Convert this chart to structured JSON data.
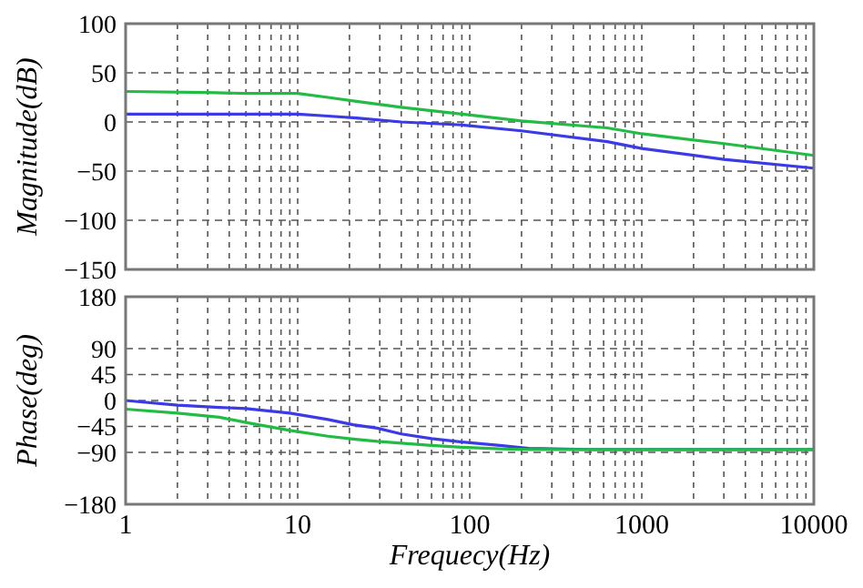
{
  "chart_data": [
    {
      "type": "line",
      "ylabel": "Magnitude(dB)",
      "log": "x",
      "grid": true,
      "tick_labels": "y",
      "line_style": "solid",
      "marker": "none",
      "xlim": [
        1,
        10000
      ],
      "xticks": [
        1,
        {
          "value": 2,
          "label": null
        },
        {
          "value": 3,
          "label": null
        },
        {
          "value": 4,
          "label": null
        },
        {
          "value": 5,
          "label": null
        },
        {
          "value": 6,
          "label": null
        },
        {
          "value": 7,
          "label": null
        },
        {
          "value": 8,
          "label": null
        },
        {
          "value": 9,
          "label": null
        },
        10,
        {
          "value": 20,
          "label": null
        },
        {
          "value": 30,
          "label": null
        },
        {
          "value": 40,
          "label": null
        },
        {
          "value": 50,
          "label": null
        },
        {
          "value": 60,
          "label": null
        },
        {
          "value": 70,
          "label": null
        },
        {
          "value": 80,
          "label": null
        },
        {
          "value": 90,
          "label": null
        },
        100,
        {
          "value": 200,
          "label": null
        },
        {
          "value": 300,
          "label": null
        },
        {
          "value": 400,
          "label": null
        },
        {
          "value": 500,
          "label": null
        },
        {
          "value": 600,
          "label": null
        },
        {
          "value": 700,
          "label": null
        },
        {
          "value": 800,
          "label": null
        },
        {
          "value": 900,
          "label": null
        },
        1000,
        {
          "value": 2000,
          "label": null
        },
        {
          "value": 3000,
          "label": null
        },
        {
          "value": 4000,
          "label": null
        },
        {
          "value": 5000,
          "label": null
        },
        {
          "value": 6000,
          "label": null
        },
        {
          "value": 7000,
          "label": null
        },
        {
          "value": 8000,
          "label": null
        },
        {
          "value": 9000,
          "label": null
        },
        10000
      ],
      "ylim": [
        -150,
        100
      ],
      "yticks": [
        -150,
        -100,
        -50,
        0,
        50,
        100
      ],
      "x": [
        1,
        3,
        5,
        10,
        15,
        22,
        40,
        90,
        200,
        630,
        1000,
        3000,
        10000
      ],
      "series": [
        {
          "color": "#22bb44",
          "values": [
            31,
            30,
            29,
            29,
            25,
            21,
            15,
            8,
            1,
            -6,
            -12,
            -22,
            -34
          ]
        },
        {
          "color": "#3a3ae6",
          "values": [
            8,
            8,
            8,
            8,
            6,
            4,
            0,
            -3,
            -9,
            -20,
            -27,
            -38,
            -47
          ]
        }
      ]
    },
    {
      "type": "line",
      "xlabel": "Frequecy(Hz)",
      "ylabel": "Phase(deg)",
      "log": "x",
      "grid": true,
      "line_style": "solid",
      "marker": "none",
      "xlim": [
        1,
        10000
      ],
      "xticks": [
        1,
        {
          "value": 2,
          "label": null
        },
        {
          "value": 3,
          "label": null
        },
        {
          "value": 4,
          "label": null
        },
        {
          "value": 5,
          "label": null
        },
        {
          "value": 6,
          "label": null
        },
        {
          "value": 7,
          "label": null
        },
        {
          "value": 8,
          "label": null
        },
        {
          "value": 9,
          "label": null
        },
        10,
        {
          "value": 20,
          "label": null
        },
        {
          "value": 30,
          "label": null
        },
        {
          "value": 40,
          "label": null
        },
        {
          "value": 50,
          "label": null
        },
        {
          "value": 60,
          "label": null
        },
        {
          "value": 70,
          "label": null
        },
        {
          "value": 80,
          "label": null
        },
        {
          "value": 90,
          "label": null
        },
        100,
        {
          "value": 200,
          "label": null
        },
        {
          "value": 300,
          "label": null
        },
        {
          "value": 400,
          "label": null
        },
        {
          "value": 500,
          "label": null
        },
        {
          "value": 600,
          "label": null
        },
        {
          "value": 700,
          "label": null
        },
        {
          "value": 800,
          "label": null
        },
        {
          "value": 900,
          "label": null
        },
        1000,
        {
          "value": 2000,
          "label": null
        },
        {
          "value": 3000,
          "label": null
        },
        {
          "value": 4000,
          "label": null
        },
        {
          "value": 5000,
          "label": null
        },
        {
          "value": 6000,
          "label": null
        },
        {
          "value": 7000,
          "label": null
        },
        {
          "value": 8000,
          "label": null
        },
        {
          "value": 9000,
          "label": null
        },
        10000
      ],
      "ylim": [
        -180,
        180
      ],
      "yticks": [
        -180,
        -90,
        -45,
        0,
        45,
        90,
        180
      ],
      "x": [
        1,
        2,
        3.5,
        5,
        9,
        15,
        21,
        29,
        40,
        60,
        90,
        150,
        220,
        500,
        1000,
        10000
      ],
      "series": [
        {
          "color": "#3a3ae6",
          "values": [
            0,
            -8,
            -12,
            -14,
            -22,
            -33,
            -42,
            -48,
            -58,
            -66,
            -72,
            -78,
            -83,
            -85,
            -85,
            -85
          ]
        },
        {
          "color": "#22bb44",
          "values": [
            -15,
            -22,
            -29,
            -38,
            -52,
            -62,
            -67,
            -71,
            -74,
            -78,
            -81,
            -84,
            -85,
            -85,
            -85,
            -85
          ]
        }
      ]
    }
  ]
}
